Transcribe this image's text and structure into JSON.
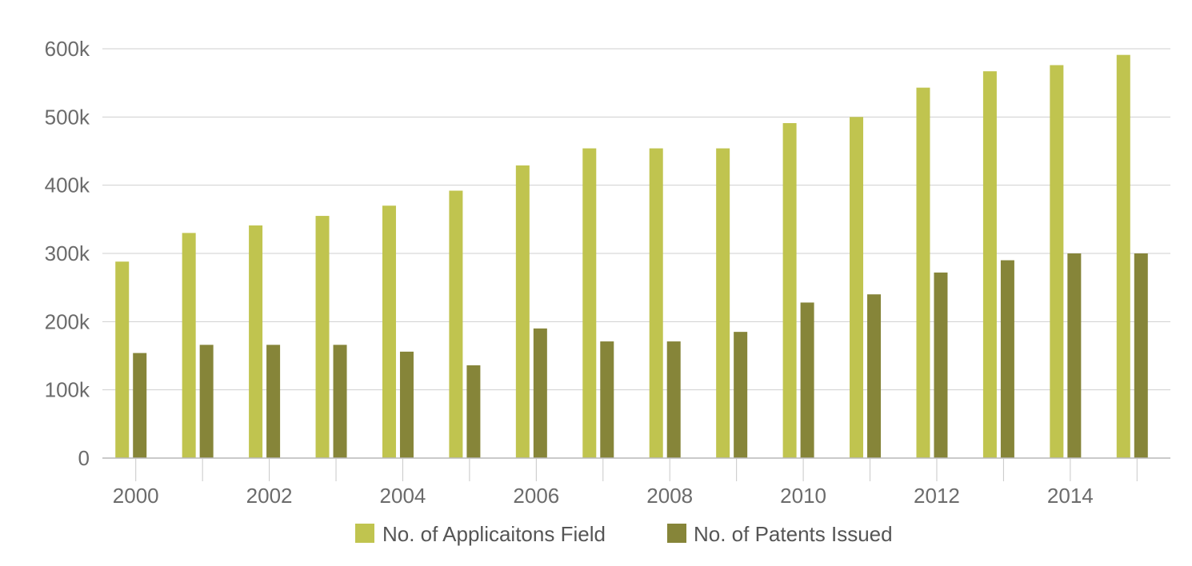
{
  "chart_data": {
    "type": "bar",
    "title": "",
    "xlabel": "",
    "ylabel": "",
    "categories": [
      "2000",
      "2001",
      "2002",
      "2003",
      "2004",
      "2005",
      "2006",
      "2007",
      "2008",
      "2009",
      "2010",
      "2011",
      "2012",
      "2013",
      "2014",
      "2015"
    ],
    "x_tick_labels": [
      "2000",
      "2002",
      "2004",
      "2006",
      "2008",
      "2010",
      "2012",
      "2014"
    ],
    "y_ticks": [
      0,
      100000,
      200000,
      300000,
      400000,
      500000,
      600000
    ],
    "y_tick_labels": [
      "0",
      "100k",
      "200k",
      "300k",
      "400k",
      "500k",
      "600k"
    ],
    "ylim": [
      0,
      600000
    ],
    "grid": true,
    "legend_position": "bottom",
    "series": [
      {
        "name": "No. of Applicaitons Field",
        "color": "#c0c44f",
        "values": [
          288000,
          330000,
          341000,
          355000,
          370000,
          392000,
          429000,
          454000,
          454000,
          454000,
          491000,
          500000,
          543000,
          567000,
          576000,
          591000
        ]
      },
      {
        "name": "No. of Patents Issued",
        "color": "#868539",
        "values": [
          154000,
          166000,
          166000,
          166000,
          156000,
          136000,
          190000,
          171000,
          171000,
          185000,
          228000,
          240000,
          272000,
          290000,
          300000,
          300000
        ]
      }
    ]
  }
}
